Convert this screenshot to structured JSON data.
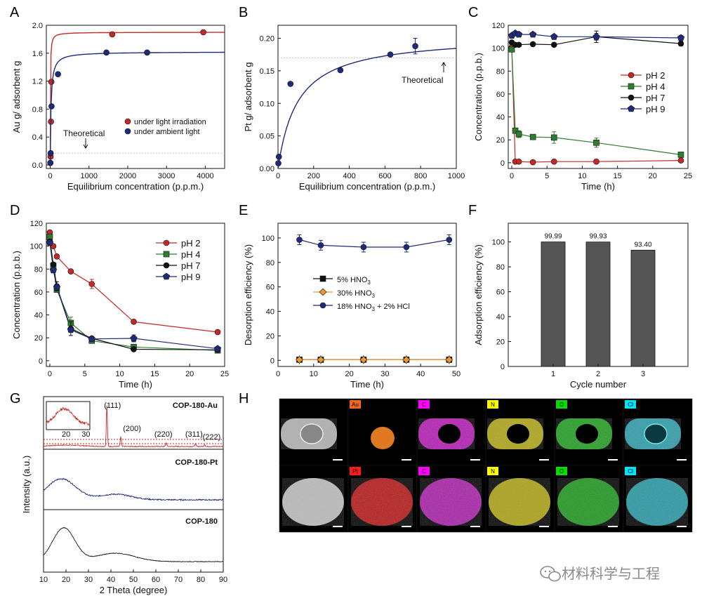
{
  "figure": {
    "panels": [
      "A",
      "B",
      "C",
      "D",
      "E",
      "F",
      "G",
      "H"
    ],
    "watermark": "材料科学与工程"
  },
  "colors": {
    "red": "#c62828",
    "navy": "#1f2a7a",
    "green": "#2e7d32",
    "black": "#111111",
    "orange": "#f0962a",
    "bar": "#555555",
    "gray_dash": "#bdbdbd"
  },
  "chart_data": [
    {
      "panel": "A",
      "type": "scatter",
      "xlabel": "Equilibrium concentration (p.p.m.)",
      "ylabel": "Au g/ adsorbent g",
      "xlim": [
        -100,
        4500
      ],
      "ylim": [
        -0.05,
        2.0
      ],
      "xticks": [
        0,
        1000,
        2000,
        3000,
        4000
      ],
      "yticks": [
        0.0,
        0.4,
        0.8,
        1.2,
        1.6,
        2.0
      ],
      "ytick_labels": [
        "0.0",
        "0.4",
        "0.8",
        "1.2",
        "1.6",
        "2.0"
      ],
      "theoretical": 0.17,
      "annotations": [
        "Theoretical"
      ],
      "legend_position": "lower-right",
      "series": [
        {
          "name": "under light irradiation",
          "color": "red",
          "marker": "circle",
          "x": [
            5,
            10,
            20,
            30,
            1600,
            3950
          ],
          "y": [
            0.03,
            0.12,
            0.62,
            1.19,
            1.87,
            1.9
          ],
          "fit": {
            "qmax": 1.9,
            "k": 0.25
          }
        },
        {
          "name": "under ambient light",
          "color": "navy",
          "marker": "circle",
          "x": [
            5,
            12,
            35,
            200,
            1450,
            2500
          ],
          "y": [
            0.03,
            0.17,
            0.84,
            1.3,
            1.61,
            1.61
          ],
          "fit": {
            "qmax": 1.62,
            "k": 0.05
          }
        }
      ]
    },
    {
      "panel": "B",
      "type": "scatter",
      "xlabel": "Equilibrium concentration (p.p.m.)",
      "ylabel": "Pt g/ adsorbent g",
      "xlim": [
        0,
        1000
      ],
      "ylim": [
        0,
        0.22
      ],
      "xticks": [
        0,
        200,
        400,
        600,
        800,
        1000
      ],
      "yticks": [
        0.0,
        0.05,
        0.1,
        0.15,
        0.2
      ],
      "ytick_labels": [
        "0.00",
        "0.05",
        "0.10",
        "0.15",
        "0.20"
      ],
      "theoretical": 0.17,
      "annotations": [
        "Theoretical"
      ],
      "series": [
        {
          "name": "",
          "color": "navy",
          "marker": "circle",
          "x": [
            2,
            5,
            70,
            350,
            630,
            770
          ],
          "y": [
            0.008,
            0.018,
            0.13,
            0.151,
            0.175,
            0.188
          ],
          "yerr": [
            0,
            0,
            0,
            0,
            0,
            0.012
          ],
          "fit": {
            "qmax": 0.205,
            "k": 0.009
          }
        }
      ]
    },
    {
      "panel": "C",
      "type": "line",
      "xlabel": "Time (h)",
      "ylabel": "Concentration (p.p.b.)",
      "xlim": [
        -0.5,
        25
      ],
      "ylim": [
        -5,
        120
      ],
      "xticks": [
        0,
        5,
        10,
        15,
        20,
        25
      ],
      "yticks": [
        0,
        20,
        40,
        60,
        80,
        100,
        120
      ],
      "legend_position": "right",
      "series": [
        {
          "name": "pH 2",
          "color": "red",
          "marker": "circle",
          "x": [
            0,
            0.5,
            1,
            3,
            6,
            12,
            24
          ],
          "y": [
            101,
            1,
            1,
            0.5,
            1,
            1,
            2
          ],
          "yerr": [
            0,
            0,
            0,
            0,
            0,
            0,
            0
          ]
        },
        {
          "name": "pH 4",
          "color": "green",
          "marker": "square",
          "x": [
            0,
            0.5,
            1,
            3,
            6,
            12,
            24
          ],
          "y": [
            99,
            28,
            25,
            22.5,
            22,
            17.5,
            7
          ],
          "yerr": [
            0,
            2,
            3,
            0,
            5,
            4,
            2
          ]
        },
        {
          "name": "pH 7",
          "color": "black",
          "marker": "circle",
          "x": [
            0,
            0.5,
            1,
            3,
            6,
            12,
            24
          ],
          "y": [
            105,
            103,
            103,
            103.5,
            103,
            110,
            104
          ],
          "yerr": [
            0,
            0,
            0,
            0,
            0,
            5,
            2
          ]
        },
        {
          "name": "pH 9",
          "color": "navy",
          "marker": "pentagon",
          "x": [
            0,
            0.5,
            1,
            3,
            6,
            12,
            24
          ],
          "y": [
            111,
            113,
            112,
            112,
            110,
            110,
            109
          ],
          "yerr": [
            0,
            0,
            0,
            0,
            0,
            3,
            2
          ]
        }
      ]
    },
    {
      "panel": "D",
      "type": "line",
      "xlabel": "Time (h)",
      "ylabel": "Concentration (p.p.b.)",
      "xlim": [
        -0.5,
        25
      ],
      "ylim": [
        -5,
        120
      ],
      "xticks": [
        0,
        5,
        10,
        15,
        20,
        25
      ],
      "yticks": [
        0,
        20,
        40,
        60,
        80,
        100,
        120
      ],
      "legend_position": "top-right",
      "series": [
        {
          "name": "pH 2",
          "color": "red",
          "marker": "circle",
          "x": [
            0,
            0.5,
            1,
            3,
            6,
            12,
            24
          ],
          "y": [
            112,
            100,
            91,
            78,
            67,
            34,
            25
          ],
          "yerr": [
            0,
            0,
            0,
            0,
            4,
            0,
            0
          ]
        },
        {
          "name": "pH 4",
          "color": "green",
          "marker": "square",
          "x": [
            0,
            0.5,
            1,
            3,
            6,
            12,
            24
          ],
          "y": [
            108,
            83,
            62,
            33,
            17.5,
            12,
            9
          ],
          "yerr": [
            0,
            0,
            0,
            5,
            0,
            0,
            0
          ]
        },
        {
          "name": "pH 7",
          "color": "black",
          "marker": "circle",
          "x": [
            0,
            0.5,
            1,
            3,
            6,
            12,
            24
          ],
          "y": [
            104,
            84,
            65,
            28,
            19.5,
            10,
            9.5
          ],
          "yerr": [
            0,
            0,
            4,
            6,
            0,
            0,
            0
          ]
        },
        {
          "name": "pH 9",
          "color": "navy",
          "marker": "pentagon",
          "x": [
            0,
            0.5,
            1,
            3,
            6,
            12,
            24
          ],
          "y": [
            103,
            79,
            64,
            27,
            19,
            19.5,
            10.5
          ],
          "yerr": [
            0,
            0,
            0,
            0,
            0,
            3,
            0
          ]
        }
      ]
    },
    {
      "panel": "E",
      "type": "line",
      "xlabel": "Time (h)",
      "ylabel": "Desorption efficiency (%)",
      "xlim": [
        0,
        50
      ],
      "ylim": [
        -5,
        112
      ],
      "xticks": [
        0,
        10,
        20,
        30,
        40,
        50
      ],
      "yticks": [
        0,
        20,
        40,
        60,
        80,
        100
      ],
      "legend_position": "center",
      "series": [
        {
          "name": "5% HNO3",
          "label_main": "5% HNO",
          "label_sub": "3",
          "label_tail": "",
          "color": "black",
          "marker": "square",
          "x": [
            6,
            12,
            24,
            36,
            48
          ],
          "y": [
            0.5,
            0.5,
            0.5,
            0.5,
            0.5
          ],
          "yerr": [
            0,
            0,
            0,
            0,
            0
          ]
        },
        {
          "name": "30% HNO3",
          "label_main": "30% HNO",
          "label_sub": "3",
          "label_tail": "",
          "color": "orange",
          "marker": "diamond",
          "x": [
            6,
            12,
            24,
            36,
            48
          ],
          "y": [
            0.5,
            0.5,
            0.5,
            0.5,
            0.5
          ],
          "yerr": [
            0,
            0,
            0,
            0,
            0
          ]
        },
        {
          "name": "18% HNO3 + 2% HCl",
          "label_main": "18% HNO",
          "label_sub": "3",
          "label_tail": " + 2% HCl",
          "color": "navy",
          "marker": "circle",
          "x": [
            6,
            12,
            24,
            36,
            48
          ],
          "y": [
            98.5,
            94,
            92.5,
            92.5,
            98.5
          ],
          "yerr": [
            4,
            4,
            4,
            4,
            4
          ]
        }
      ]
    },
    {
      "panel": "F",
      "type": "bar",
      "xlabel": "Cycle number",
      "ylabel": "Adsorption efficiency (%)",
      "categories": [
        "1",
        "2",
        "3"
      ],
      "values": [
        99.99,
        99.93,
        93.4
      ],
      "value_labels": [
        "99.99",
        "99.93",
        "93.40"
      ],
      "ylim": [
        0,
        115
      ],
      "yticks": [
        0,
        20,
        40,
        60,
        80,
        100
      ]
    },
    {
      "panel": "G",
      "type": "line",
      "xlabel": "2 Theta (degree)",
      "ylabel": "Intensity (a.u.)",
      "xlim": [
        10,
        90
      ],
      "xticks": [
        10,
        20,
        30,
        40,
        50,
        60,
        70,
        80,
        90
      ],
      "series": [
        {
          "name": "COP-180-Au",
          "color": "red",
          "peaks": [
            [
              38.2,
              "(111)"
            ],
            [
              44.4,
              "(200)"
            ],
            [
              64.6,
              "(220)"
            ],
            [
              77.6,
              "(311)"
            ],
            [
              81.7,
              "(222)"
            ]
          ]
        },
        {
          "name": "COP-180-Pt",
          "color": "navy"
        },
        {
          "name": "COP-180",
          "color": "black"
        }
      ],
      "inset": {
        "xticks": [
          20,
          30
        ],
        "xlim": [
          10,
          32
        ]
      }
    }
  ],
  "panel_h": {
    "type": "image",
    "rows": [
      {
        "labels": [
          "",
          "Au",
          "C",
          "N",
          "O",
          "Cl"
        ],
        "label_colors": [
          "",
          "#f06a1e",
          "#ff00ff",
          "#ffff00",
          "#00dd00",
          "#00e5ff"
        ]
      },
      {
        "labels": [
          "",
          "Pt",
          "C",
          "N",
          "O",
          "Cl"
        ],
        "label_colors": [
          "",
          "#ff1a1a",
          "#ff00ff",
          "#ffff00",
          "#00dd00",
          "#00e5ff"
        ]
      }
    ]
  }
}
